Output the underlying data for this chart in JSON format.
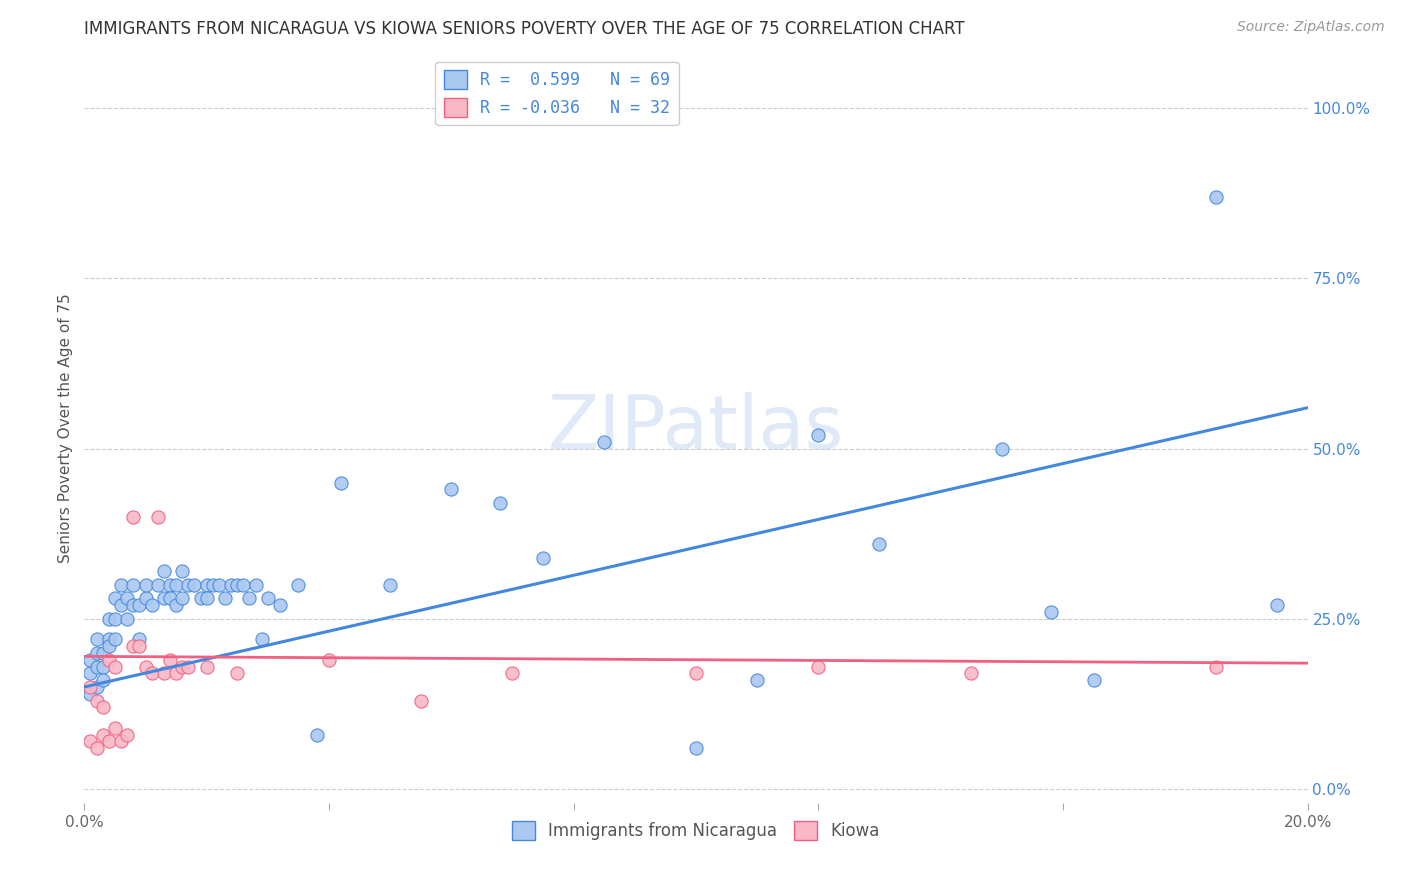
{
  "title": "IMMIGRANTS FROM NICARAGUA VS KIOWA SENIORS POVERTY OVER THE AGE OF 75 CORRELATION CHART",
  "source": "Source: ZipAtlas.com",
  "ylabel": "Seniors Poverty Over the Age of 75",
  "r_blue": 0.599,
  "n_blue": 69,
  "r_pink": -0.036,
  "n_pink": 32,
  "blue_color": "#aac8f0",
  "pink_color": "#f8b8c8",
  "blue_line_color": "#4488dd",
  "pink_line_color": "#f06080",
  "xlim": [
    0.0,
    0.2
  ],
  "ylim": [
    -0.02,
    1.08
  ],
  "right_yticks": [
    0.0,
    0.25,
    0.5,
    0.75,
    1.0
  ],
  "right_yticklabels": [
    "0.0%",
    "25.0%",
    "50.0%",
    "75.0%",
    "100.0%"
  ],
  "xticks": [
    0.0,
    0.04,
    0.08,
    0.12,
    0.16,
    0.2
  ],
  "xticklabels": [
    "0.0%",
    "",
    "",
    "",
    "",
    "20.0%"
  ],
  "legend_label_blue": "Immigrants from Nicaragua",
  "legend_label_pink": "Kiowa",
  "blue_scatter_x": [
    0.001,
    0.001,
    0.001,
    0.002,
    0.002,
    0.002,
    0.002,
    0.003,
    0.003,
    0.003,
    0.004,
    0.004,
    0.004,
    0.005,
    0.005,
    0.005,
    0.006,
    0.006,
    0.007,
    0.007,
    0.008,
    0.008,
    0.009,
    0.009,
    0.01,
    0.01,
    0.011,
    0.012,
    0.013,
    0.013,
    0.014,
    0.014,
    0.015,
    0.015,
    0.016,
    0.016,
    0.017,
    0.018,
    0.019,
    0.02,
    0.02,
    0.021,
    0.022,
    0.023,
    0.024,
    0.025,
    0.026,
    0.027,
    0.028,
    0.029,
    0.03,
    0.032,
    0.035,
    0.038,
    0.042,
    0.05,
    0.06,
    0.068,
    0.075,
    0.085,
    0.1,
    0.11,
    0.12,
    0.13,
    0.15,
    0.158,
    0.165,
    0.185,
    0.195
  ],
  "blue_scatter_y": [
    0.17,
    0.14,
    0.19,
    0.15,
    0.18,
    0.2,
    0.22,
    0.18,
    0.2,
    0.16,
    0.25,
    0.22,
    0.21,
    0.22,
    0.28,
    0.25,
    0.27,
    0.3,
    0.28,
    0.25,
    0.27,
    0.3,
    0.27,
    0.22,
    0.28,
    0.3,
    0.27,
    0.3,
    0.28,
    0.32,
    0.3,
    0.28,
    0.3,
    0.27,
    0.32,
    0.28,
    0.3,
    0.3,
    0.28,
    0.3,
    0.28,
    0.3,
    0.3,
    0.28,
    0.3,
    0.3,
    0.3,
    0.28,
    0.3,
    0.22,
    0.28,
    0.27,
    0.3,
    0.08,
    0.45,
    0.3,
    0.44,
    0.42,
    0.34,
    0.51,
    0.06,
    0.16,
    0.52,
    0.36,
    0.5,
    0.26,
    0.16,
    0.87,
    0.27
  ],
  "pink_scatter_x": [
    0.001,
    0.001,
    0.002,
    0.002,
    0.003,
    0.003,
    0.004,
    0.004,
    0.005,
    0.005,
    0.006,
    0.007,
    0.008,
    0.008,
    0.009,
    0.01,
    0.011,
    0.012,
    0.013,
    0.014,
    0.015,
    0.016,
    0.017,
    0.02,
    0.025,
    0.04,
    0.055,
    0.07,
    0.1,
    0.12,
    0.145,
    0.185
  ],
  "pink_scatter_y": [
    0.15,
    0.07,
    0.13,
    0.06,
    0.12,
    0.08,
    0.19,
    0.07,
    0.09,
    0.18,
    0.07,
    0.08,
    0.21,
    0.4,
    0.21,
    0.18,
    0.17,
    0.4,
    0.17,
    0.19,
    0.17,
    0.18,
    0.18,
    0.18,
    0.17,
    0.19,
    0.13,
    0.17,
    0.17,
    0.18,
    0.17,
    0.18
  ],
  "watermark": "ZIPatlas",
  "background_color": "#ffffff",
  "grid_color": "#cccccc",
  "title_fontsize": 12,
  "axis_label_fontsize": 11,
  "tick_fontsize": 11
}
